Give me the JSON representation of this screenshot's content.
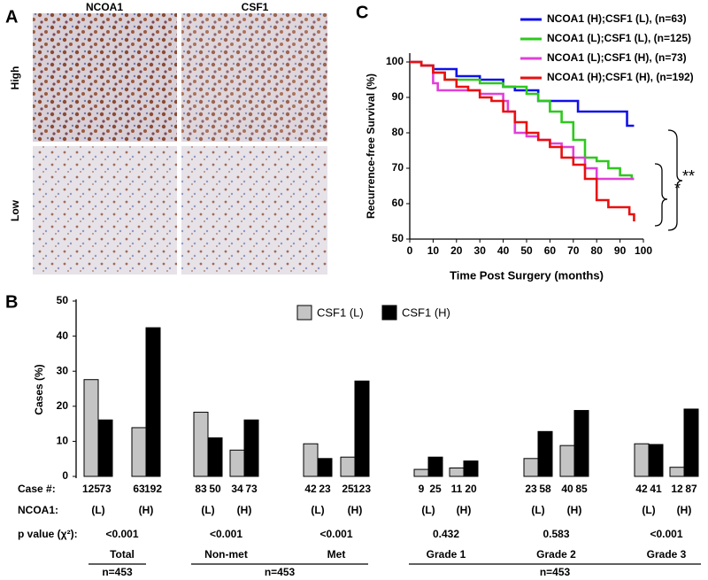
{
  "panel_a": {
    "label": "A",
    "columns": [
      "NCOA1",
      "CSF1"
    ],
    "rows": [
      "High",
      "Low"
    ]
  },
  "chart_data": [
    {
      "type": "line",
      "panel": "C",
      "xlabel": "Time Post Surgery (months)",
      "ylabel": "Recurrence-free  Survival (%)",
      "xlim": [
        0,
        100
      ],
      "ylim": [
        50,
        100
      ],
      "xticks": [
        0,
        10,
        20,
        30,
        40,
        50,
        60,
        70,
        80,
        90,
        100
      ],
      "yticks": [
        50,
        60,
        70,
        80,
        90,
        100
      ],
      "step": true,
      "series": [
        {
          "name": "NCOA1 (H);CSF1 (L), (n=63)",
          "color": "#1010e8",
          "x": [
            0,
            5,
            10,
            15,
            20,
            30,
            40,
            45,
            55,
            60,
            70,
            72,
            92,
            93,
            96
          ],
          "values": [
            100,
            99,
            98,
            98,
            96,
            95,
            93,
            92,
            89,
            89,
            89,
            86,
            86,
            82,
            82
          ]
        },
        {
          "name": "NCOA1 (L);CSF1 (L), (n=125)",
          "color": "#2ec81e",
          "x": [
            0,
            5,
            10,
            15,
            20,
            30,
            40,
            50,
            55,
            60,
            65,
            70,
            75,
            80,
            85,
            90,
            95,
            96
          ],
          "values": [
            100,
            99,
            97,
            95,
            95,
            94,
            93,
            91,
            89,
            86,
            83,
            78,
            73,
            72,
            70,
            68,
            67,
            67
          ]
        },
        {
          "name": "NCOA1 (L);CSF1 (H), (n=73)",
          "color": "#e040d8",
          "x": [
            0,
            5,
            10,
            12,
            20,
            30,
            40,
            42,
            45,
            50,
            55,
            60,
            65,
            70,
            75,
            80,
            90,
            96
          ],
          "values": [
            100,
            99,
            94,
            92,
            92,
            91,
            89,
            86,
            80,
            79,
            78,
            77,
            76,
            73,
            70,
            67,
            67,
            67
          ]
        },
        {
          "name": "NCOA1 (H);CSF1 (H), (n=192)",
          "color": "#e81010",
          "x": [
            0,
            5,
            10,
            15,
            20,
            25,
            30,
            35,
            40,
            45,
            50,
            55,
            60,
            65,
            70,
            75,
            80,
            85,
            90,
            94,
            96
          ],
          "values": [
            100,
            99,
            97,
            95,
            93,
            92,
            90,
            89,
            86,
            83,
            80,
            78,
            76,
            73,
            71,
            67,
            61,
            59,
            59,
            57,
            55
          ]
        }
      ],
      "annotations": [
        "*",
        "**"
      ]
    },
    {
      "type": "bar",
      "panel": "B",
      "ylabel": "Cases (%)",
      "ylim": [
        0,
        50
      ],
      "yticks": [
        0,
        10,
        20,
        30,
        40,
        50
      ],
      "categories": [
        "(L)",
        "(H)",
        "(L)",
        "(H)",
        "(L)",
        "(H)",
        "(L)",
        "(H)",
        "(L)",
        "(H)",
        "(L)",
        "(H)"
      ],
      "row_labels": [
        "Case #:",
        "NCOA1:",
        "p value (χ²):"
      ],
      "series": [
        {
          "name": "CSF1 (L)",
          "color": "#c4c4c4",
          "values": [
            27.6,
            13.9,
            18.3,
            7.5,
            9.3,
            5.5,
            2.0,
            2.4,
            5.1,
            8.8,
            9.3,
            2.6
          ],
          "case_counts": [
            125,
            63,
            83,
            34,
            42,
            25,
            9,
            11,
            23,
            40,
            42,
            12
          ]
        },
        {
          "name": "CSF1 (H)",
          "color": "#000000",
          "values": [
            16.1,
            42.4,
            11.0,
            16.1,
            5.1,
            27.2,
            5.5,
            4.4,
            12.8,
            18.8,
            9.1,
            19.2
          ],
          "case_counts": [
            73,
            192,
            50,
            73,
            23,
            123,
            25,
            20,
            58,
            85,
            41,
            87
          ]
        }
      ],
      "groups": [
        {
          "name": "Total",
          "p_value": "<0.001"
        },
        {
          "name": "Non-met",
          "p_value": "<0.001"
        },
        {
          "name": "Met",
          "p_value": "<0.001"
        },
        {
          "name": "Grade 1",
          "p_value": "0.432"
        },
        {
          "name": "Grade 2",
          "p_value": "0.583"
        },
        {
          "name": "Grade 3",
          "p_value": "<0.001"
        }
      ],
      "sample_sizes": [
        "n=453",
        "n=453",
        "n=453"
      ]
    }
  ]
}
